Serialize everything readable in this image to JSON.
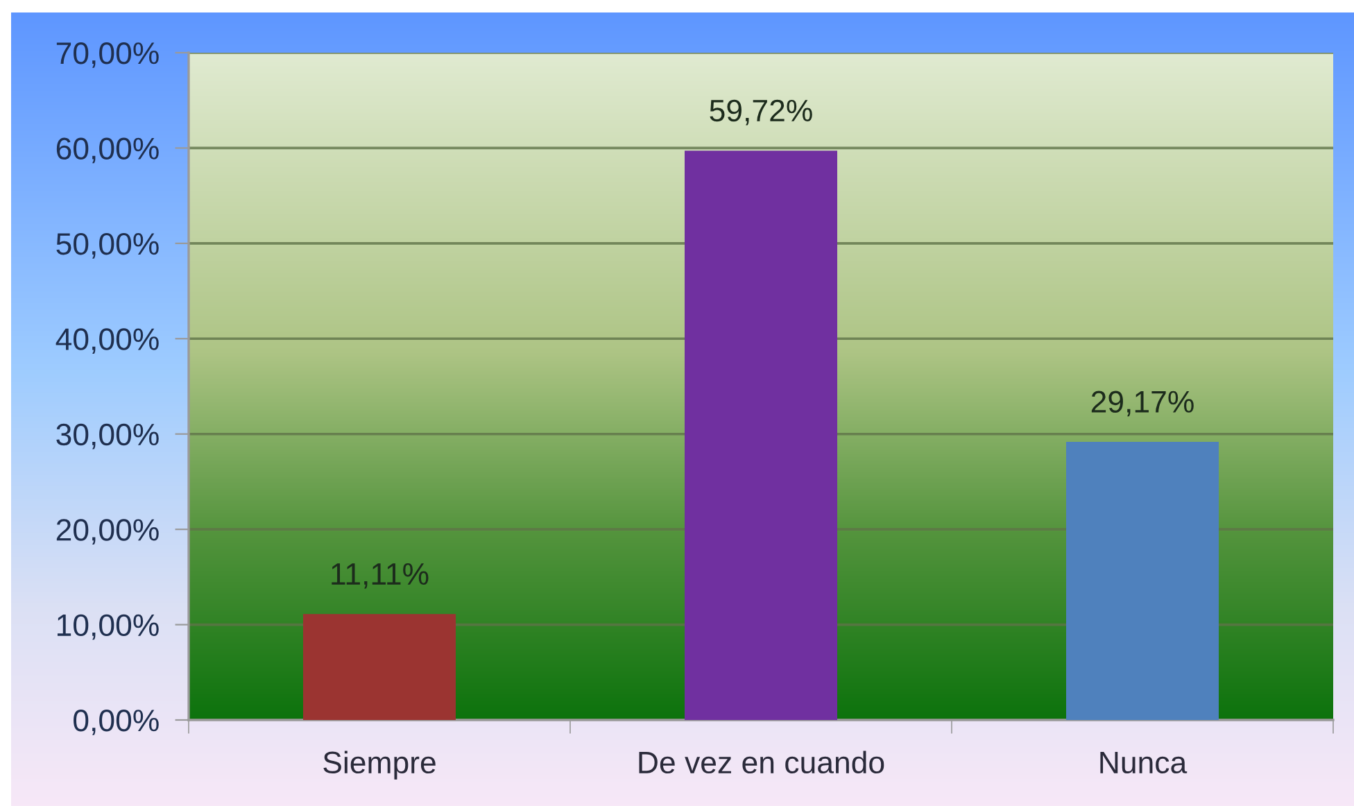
{
  "chart_data": {
    "type": "bar",
    "categories": [
      "Siempre",
      "De vez en cuando",
      "Nunca"
    ],
    "values": [
      11.11,
      59.72,
      29.17
    ],
    "colors": [
      "#9b3431",
      "#7030a0",
      "#4f81bd"
    ],
    "value_labels": [
      "11,11%",
      "59,72%",
      "29,17%"
    ],
    "ylim": [
      0,
      70
    ],
    "yticks": [
      {
        "value": 0,
        "label": "0,00%"
      },
      {
        "value": 10,
        "label": "10,00%"
      },
      {
        "value": 20,
        "label": "20,00%"
      },
      {
        "value": 30,
        "label": "30,00%"
      },
      {
        "value": 40,
        "label": "40,00%"
      },
      {
        "value": 50,
        "label": "50,00%"
      },
      {
        "value": 60,
        "label": "60,00%"
      },
      {
        "value": 70,
        "label": "70,00%"
      }
    ],
    "grid": "y"
  }
}
